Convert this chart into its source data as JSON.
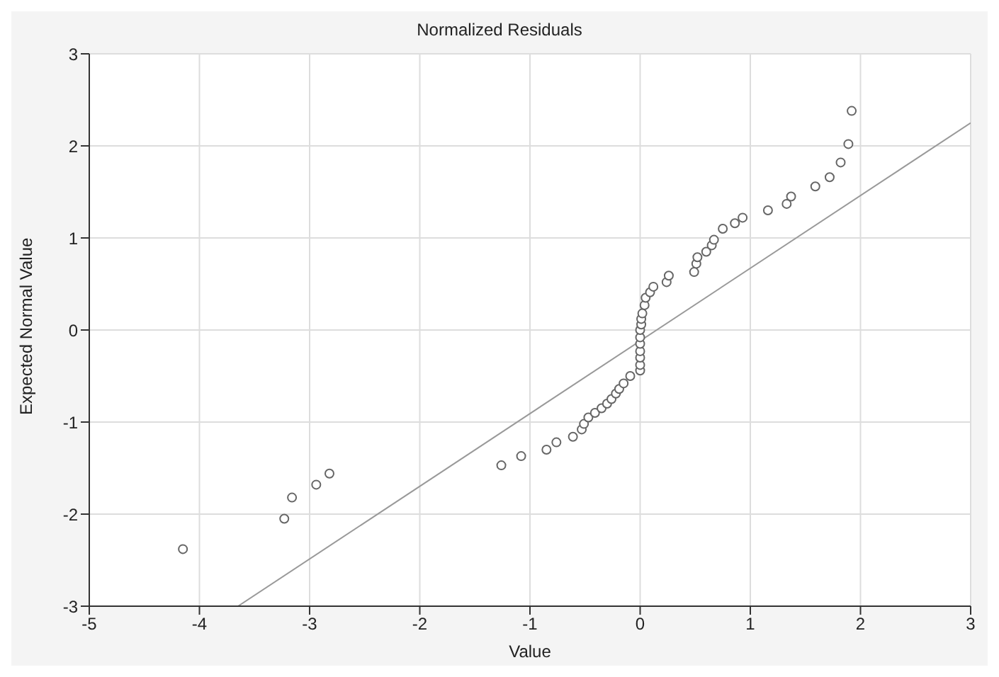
{
  "chart_data": {
    "type": "scatter",
    "title": "Normalized Residuals",
    "xlabel": "Value",
    "ylabel": "Expected Normal Value",
    "xlim": [
      -5,
      3
    ],
    "ylim": [
      -3,
      3
    ],
    "xticks": [
      -5,
      -4,
      -3,
      -2,
      -1,
      0,
      1,
      2,
      3
    ],
    "yticks": [
      -3,
      -2,
      -1,
      0,
      1,
      2,
      3
    ],
    "grid": true,
    "marker": "circle",
    "series": [
      {
        "color": "#666666",
        "x": [
          -4.15,
          -3.23,
          -3.16,
          -2.94,
          -2.82,
          -1.26,
          -1.08,
          -0.85,
          -0.76,
          -0.61,
          -0.53,
          -0.51,
          -0.47,
          -0.41,
          -0.35,
          -0.3,
          -0.26,
          -0.22,
          -0.19,
          -0.15,
          -0.09,
          0.0,
          0.0,
          0.0,
          0.0,
          0.0,
          0.0,
          0.0,
          0.01,
          0.01,
          0.02,
          0.04,
          0.05,
          0.09,
          0.12,
          0.24,
          0.26,
          0.49,
          0.51,
          0.52,
          0.6,
          0.65,
          0.67,
          0.75,
          0.86,
          0.93,
          1.16,
          1.33,
          1.37,
          1.59,
          1.72,
          1.82,
          1.89,
          1.92
        ],
        "values": [
          -2.38,
          -2.05,
          -1.82,
          -1.68,
          -1.56,
          -1.47,
          -1.37,
          -1.3,
          -1.22,
          -1.16,
          -1.08,
          -1.02,
          -0.95,
          -0.9,
          -0.85,
          -0.8,
          -0.75,
          -0.69,
          -0.64,
          -0.58,
          -0.5,
          -0.44,
          -0.38,
          -0.3,
          -0.23,
          -0.15,
          -0.08,
          0.0,
          0.06,
          0.12,
          0.18,
          0.27,
          0.35,
          0.41,
          0.47,
          0.52,
          0.59,
          0.63,
          0.72,
          0.79,
          0.85,
          0.92,
          0.98,
          1.1,
          1.16,
          1.22,
          1.3,
          1.37,
          1.45,
          1.56,
          1.66,
          1.82,
          2.02,
          2.38
        ]
      },
      {
        "type": "line",
        "color": "#999999",
        "marker": "none",
        "x": [
          -3.65,
          3
        ],
        "values": [
          -3,
          2.25
        ]
      }
    ]
  }
}
